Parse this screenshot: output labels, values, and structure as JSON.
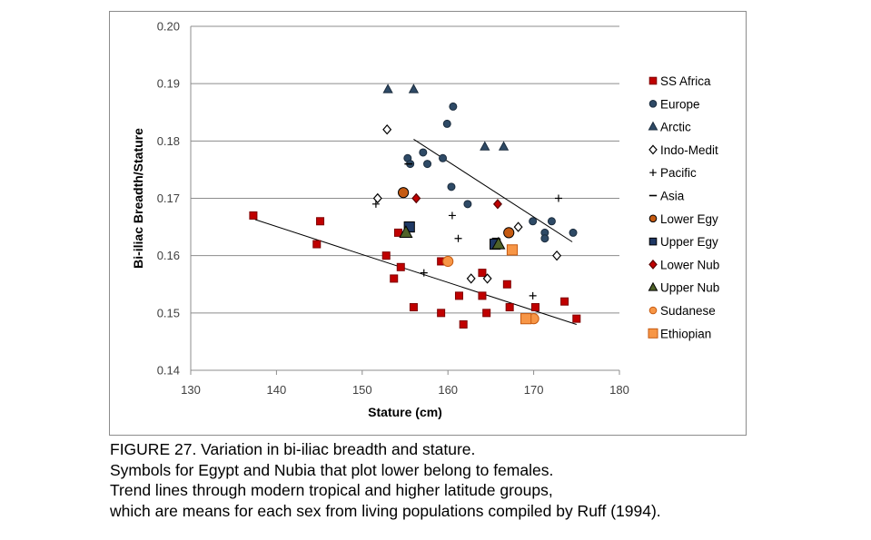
{
  "chart_data": {
    "type": "scatter",
    "xlabel": "Stature (cm)",
    "ylabel": "Bi-iliac Breadth/Stature",
    "xlim": [
      130,
      180
    ],
    "ylim": [
      0.14,
      0.2
    ],
    "xticks": [
      130,
      140,
      150,
      160,
      170,
      180
    ],
    "yticks": [
      0.14,
      0.15,
      0.16,
      0.17,
      0.18,
      0.19,
      0.2
    ],
    "ytick_labels": [
      "0.14",
      "0.15",
      "0.16",
      "0.17",
      "0.18",
      "0.19",
      "0.20"
    ],
    "grid": "horizontal",
    "legend_position": "right",
    "series": [
      {
        "name": "SS Africa",
        "marker": "square",
        "fill": "#c00000",
        "stroke": "#7f0000",
        "points": [
          [
            137.3,
            0.167
          ],
          [
            144.7,
            0.162
          ],
          [
            145.1,
            0.166
          ],
          [
            152.8,
            0.16
          ],
          [
            153.7,
            0.156
          ],
          [
            154.2,
            0.164
          ],
          [
            154.5,
            0.158
          ],
          [
            156.0,
            0.151
          ],
          [
            159.2,
            0.159
          ],
          [
            159.2,
            0.15
          ],
          [
            161.3,
            0.153
          ],
          [
            161.8,
            0.148
          ],
          [
            164.0,
            0.157
          ],
          [
            164.0,
            0.153
          ],
          [
            164.5,
            0.15
          ],
          [
            166.9,
            0.155
          ],
          [
            167.2,
            0.151
          ],
          [
            170.2,
            0.151
          ],
          [
            173.6,
            0.152
          ],
          [
            175.0,
            0.149
          ]
        ]
      },
      {
        "name": "Europe",
        "marker": "circle",
        "fill": "#2e4a66",
        "stroke": "#1b2c3d",
        "points": [
          [
            155.3,
            0.177
          ],
          [
            155.6,
            0.176
          ],
          [
            157.1,
            0.178
          ],
          [
            157.6,
            0.176
          ],
          [
            159.4,
            0.177
          ],
          [
            159.9,
            0.183
          ],
          [
            160.4,
            0.172
          ],
          [
            160.6,
            0.186
          ],
          [
            162.3,
            0.169
          ],
          [
            169.9,
            0.166
          ],
          [
            171.3,
            0.164
          ],
          [
            171.3,
            0.163
          ],
          [
            172.1,
            0.166
          ],
          [
            174.6,
            0.164
          ]
        ]
      },
      {
        "name": "Arctic",
        "marker": "triangle",
        "fill": "#2e4a66",
        "stroke": "#1b2c3d",
        "points": [
          [
            153.0,
            0.189
          ],
          [
            156.0,
            0.189
          ],
          [
            164.3,
            0.179
          ],
          [
            166.5,
            0.179
          ]
        ]
      },
      {
        "name": "Indo-Medit",
        "marker": "diamond-open",
        "fill": "#ffffff",
        "stroke": "#000000",
        "points": [
          [
            151.8,
            0.17
          ],
          [
            152.9,
            0.182
          ],
          [
            162.7,
            0.156
          ],
          [
            164.6,
            0.156
          ],
          [
            168.2,
            0.165
          ],
          [
            172.7,
            0.16
          ]
        ]
      },
      {
        "name": "Pacific",
        "marker": "plus",
        "fill": "#000000",
        "stroke": "#000000",
        "points": [
          [
            151.6,
            0.169
          ],
          [
            157.2,
            0.157
          ],
          [
            160.5,
            0.167
          ],
          [
            161.2,
            0.163
          ],
          [
            169.9,
            0.153
          ],
          [
            172.9,
            0.17
          ]
        ]
      },
      {
        "name": "Asia",
        "marker": "dash",
        "fill": "#000000",
        "stroke": "#000000",
        "points": [
          [
            155.4,
            0.176
          ],
          [
            165.6,
            0.163
          ]
        ]
      },
      {
        "name": "Lower Egy",
        "marker": "circle",
        "fill": "#c55a11",
        "stroke": "#000000",
        "points": [
          [
            154.8,
            0.171
          ],
          [
            167.1,
            0.164
          ]
        ]
      },
      {
        "name": "Upper Egy",
        "marker": "square",
        "fill": "#1f3864",
        "stroke": "#000000",
        "points": [
          [
            155.5,
            0.165
          ],
          [
            165.5,
            0.162
          ]
        ]
      },
      {
        "name": "Lower Nub",
        "marker": "diamond",
        "fill": "#c00000",
        "stroke": "#5a0000",
        "points": [
          [
            156.3,
            0.17
          ],
          [
            165.8,
            0.169
          ]
        ]
      },
      {
        "name": "Upper Nub",
        "marker": "triangle",
        "fill": "#4f6228",
        "stroke": "#000000",
        "points": [
          [
            155.1,
            0.164
          ],
          [
            165.9,
            0.162
          ]
        ]
      },
      {
        "name": "Sudanese",
        "marker": "circle",
        "fill": "#f79646",
        "stroke": "#c55a11",
        "points": [
          [
            160.0,
            0.159
          ],
          [
            170.0,
            0.149
          ]
        ]
      },
      {
        "name": "Ethiopian",
        "marker": "square",
        "fill": "#f79646",
        "stroke": "#c55a11",
        "points": [
          [
            167.5,
            0.161
          ],
          [
            169.1,
            0.149
          ]
        ]
      }
    ],
    "trend_lines": [
      {
        "x": [
          137.5,
          175.0
        ],
        "y": [
          0.1663,
          0.148
        ]
      },
      {
        "x": [
          156.0,
          174.5
        ],
        "y": [
          0.1803,
          0.1624
        ]
      }
    ]
  },
  "caption": {
    "lines": [
      "FIGURE 27. Variation in bi-iliac breadth and stature.",
      "Symbols for Egypt and Nubia that plot lower belong to females.",
      "Trend lines through modern tropical and higher latitude groups,",
      "which are means for each sex from living populations compiled by Ruff (1994)."
    ]
  }
}
